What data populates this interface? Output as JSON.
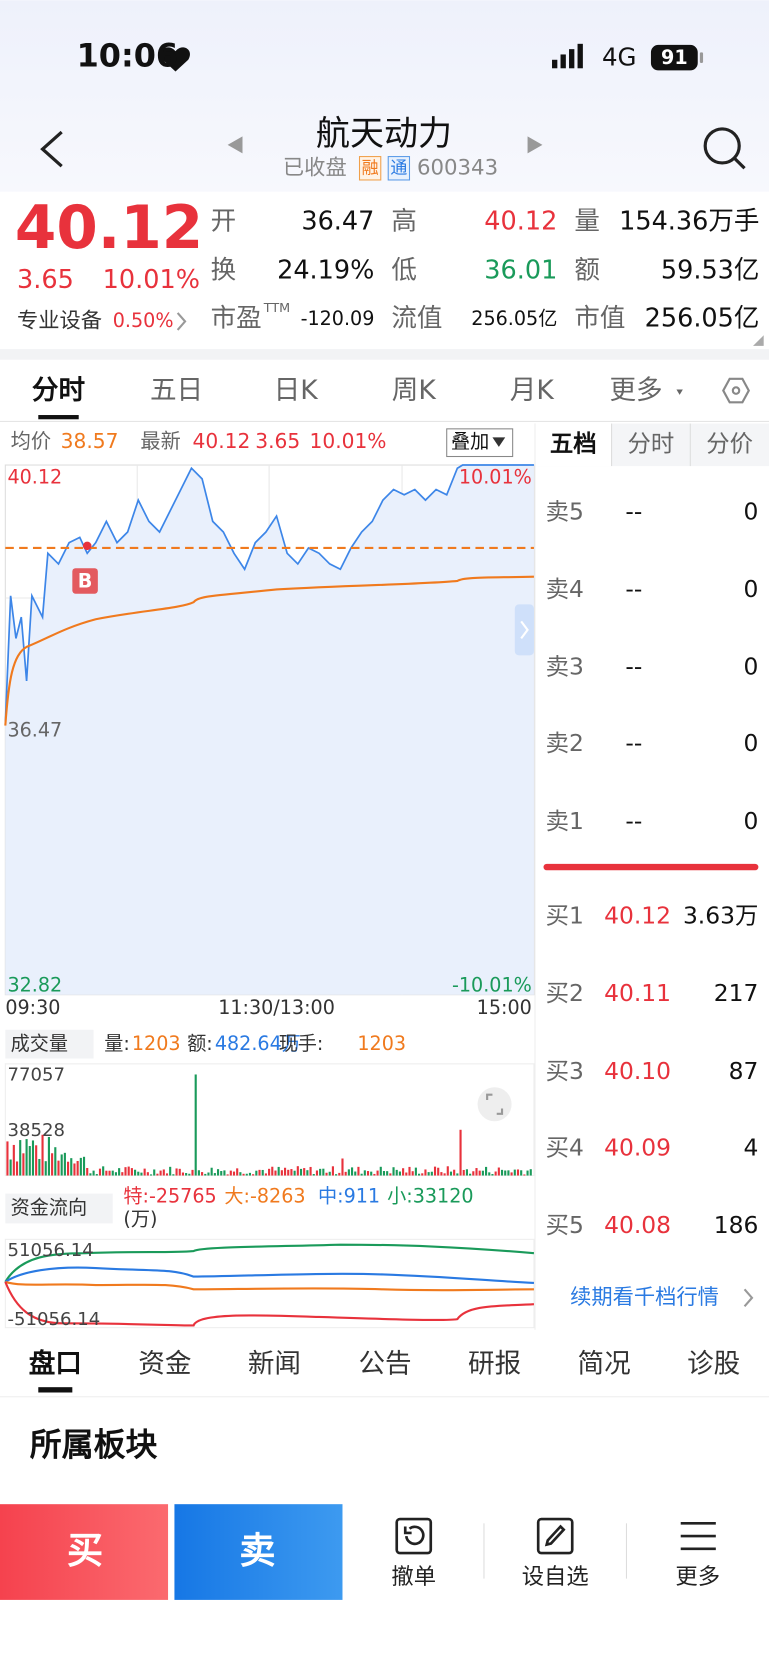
{
  "status_bar": {
    "time": "10:06",
    "network": "4G",
    "battery": "91"
  },
  "header": {
    "title": "航天动力",
    "status": "已收盘",
    "badges": [
      "融",
      "通"
    ],
    "code": "600343"
  },
  "quote": {
    "price": "40.12",
    "change": "3.65",
    "change_pct": "10.01%",
    "sector": "专业设备",
    "sector_pct": "0.50%",
    "stats": [
      [
        "开",
        "36.47"
      ],
      [
        "高",
        "40.12"
      ],
      [
        "量",
        "154.36万手"
      ],
      [
        "换",
        "24.19%"
      ],
      [
        "低",
        "36.01"
      ],
      [
        "额",
        "59.53亿"
      ],
      [
        "市盈",
        "-120.09"
      ],
      [
        "流值",
        "256.05亿"
      ],
      [
        "市值",
        "256.05亿"
      ]
    ],
    "pe_sup": "TTM"
  },
  "chart_tabs": [
    "分时",
    "五日",
    "日K",
    "周K",
    "月K",
    "更多"
  ],
  "intraday": {
    "avg_label": "均价",
    "avg": "38.57",
    "last_label": "最新",
    "last": "40.12",
    "change": "3.65",
    "change_pct": "10.01%",
    "overlay": "叠加",
    "y_labels": [
      "40.12",
      "36.47",
      "32.82"
    ],
    "pct_labels": [
      "10.01%",
      "-10.01%"
    ],
    "x_labels": [
      "09:30",
      "11:30/13:00",
      "15:00"
    ],
    "marker": "B"
  },
  "volume": {
    "title": "成交量",
    "vol_label": "量:",
    "vol": "1203",
    "amt_label": "额:",
    "amt": "482.64万",
    "hand_label": "现手:",
    "hand": "1203",
    "y_labels": [
      "77057",
      "38528"
    ]
  },
  "fund_flow": {
    "title": "资金流向",
    "items": [
      "特:-25765",
      "大:-8263",
      "中:911",
      "小:33120"
    ],
    "unit": "(万)",
    "y_labels": [
      "51056.14",
      "-51056.14"
    ]
  },
  "order_book": {
    "tabs": [
      "五档",
      "分时",
      "分价"
    ],
    "asks": [
      [
        "卖5",
        "--",
        "0"
      ],
      [
        "卖4",
        "--",
        "0"
      ],
      [
        "卖3",
        "--",
        "0"
      ],
      [
        "卖2",
        "--",
        "0"
      ],
      [
        "卖1",
        "--",
        "0"
      ]
    ],
    "bids": [
      [
        "买1",
        "40.12",
        "3.63万"
      ],
      [
        "买2",
        "40.11",
        "217"
      ],
      [
        "买3",
        "40.10",
        "87"
      ],
      [
        "买4",
        "40.09",
        "4"
      ],
      [
        "买5",
        "40.08",
        "186"
      ]
    ],
    "more": "续期看千档行情"
  },
  "bottom_tabs": [
    "盘口",
    "资金",
    "新闻",
    "公告",
    "研报",
    "简况",
    "诊股"
  ],
  "section_title": "所属板块",
  "actions": {
    "buy": "买",
    "sell": "卖",
    "items": [
      "撤单",
      "设自选",
      "更多"
    ]
  }
}
